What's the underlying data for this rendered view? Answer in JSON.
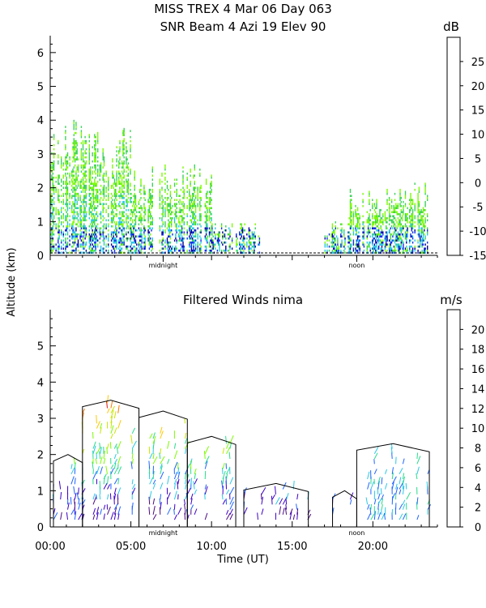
{
  "header": {
    "line1": "MISS TREX    4 Mar 06 Day 063",
    "line2": "SNR Beam 4 Azi   19 Elev 90"
  },
  "shared": {
    "ylabel": "Altitude (km)",
    "xlabel": "Time (UT)",
    "midnight_label": "midnight",
    "noon_label": "noon"
  },
  "chart_data": [
    {
      "type": "heatmap",
      "title": "MISS TREX    4 Mar 06 Day 063",
      "subtitle": "SNR Beam 4 Azi   19 Elev 90",
      "xlabel": "",
      "ylabel": "Altitude (km)",
      "xlim": [
        0,
        24
      ],
      "ylim": [
        0,
        6.5
      ],
      "y_ticks": [
        0,
        1,
        2,
        3,
        4,
        5,
        6
      ],
      "x_markers": [
        {
          "x": 7.0,
          "label": "midnight"
        },
        {
          "x": 19.0,
          "label": "noon"
        }
      ],
      "colorbar": {
        "unit": "dB",
        "ticks": [
          -15,
          -10,
          -5,
          0,
          5,
          10,
          15,
          20,
          25
        ],
        "colors": [
          "#7cfc00",
          "#3cd25a",
          "#28c8e6",
          "#1030f0",
          "#000096",
          "#4b0a82",
          "#800080",
          "#e01010",
          "#ff7800",
          "#ffc800"
        ],
        "range": [
          -15,
          30
        ]
      },
      "description_series": [
        {
          "x_start": 0.0,
          "x_end": 2.0,
          "top_km": 4.0
        },
        {
          "x_start": 2.0,
          "x_end": 5.0,
          "top_km": 3.8
        },
        {
          "x_start": 5.0,
          "x_end": 10.0,
          "top_km": 2.7
        },
        {
          "x_start": 10.0,
          "x_end": 13.0,
          "top_km": 1.0
        },
        {
          "x_start": 17.0,
          "x_end": 18.5,
          "top_km": 1.0
        },
        {
          "x_start": 18.5,
          "x_end": 21.0,
          "top_km": 2.0
        },
        {
          "x_start": 21.0,
          "x_end": 23.5,
          "top_km": 2.2
        }
      ]
    },
    {
      "type": "scatter",
      "title": "Filtered Winds nima",
      "xlabel": "Time (UT)",
      "ylabel": "Altitude (km)",
      "xlim": [
        0,
        24
      ],
      "ylim": [
        0,
        6
      ],
      "y_ticks": [
        0,
        1,
        2,
        3,
        4,
        5
      ],
      "x_ticks": [
        "00:00",
        "05:00",
        "10:00",
        "15:00",
        "20:00"
      ],
      "x_tick_values": [
        0,
        5,
        10,
        15,
        20
      ],
      "x_markers": [
        {
          "x": 7.0,
          "label": "midnight"
        },
        {
          "x": 19.0,
          "label": "noon"
        }
      ],
      "colorbar": {
        "unit": "m/s",
        "ticks": [
          0,
          2,
          4,
          6,
          8,
          10,
          12,
          14,
          16,
          18,
          20
        ],
        "colors": [
          "#000000",
          "#4b0a82",
          "#3c00c8",
          "#1e64ff",
          "#28c8e6",
          "#28dc8c",
          "#7cfc00",
          "#c8e600",
          "#ffc800",
          "#ff7800",
          "#e01010"
        ],
        "range": [
          0,
          22
        ]
      },
      "wind_coverage": [
        {
          "x_start": 0.2,
          "x_end": 2.0,
          "top_km": 2.0
        },
        {
          "x_start": 2.0,
          "x_end": 5.5,
          "top_km": 3.5
        },
        {
          "x_start": 5.5,
          "x_end": 8.5,
          "top_km": 3.2
        },
        {
          "x_start": 8.5,
          "x_end": 11.5,
          "top_km": 2.5
        },
        {
          "x_start": 12.0,
          "x_end": 16.0,
          "top_km": 1.2
        },
        {
          "x_start": 17.5,
          "x_end": 19.0,
          "top_km": 1.0
        },
        {
          "x_start": 19.0,
          "x_end": 23.5,
          "top_km": 2.3
        }
      ]
    }
  ]
}
